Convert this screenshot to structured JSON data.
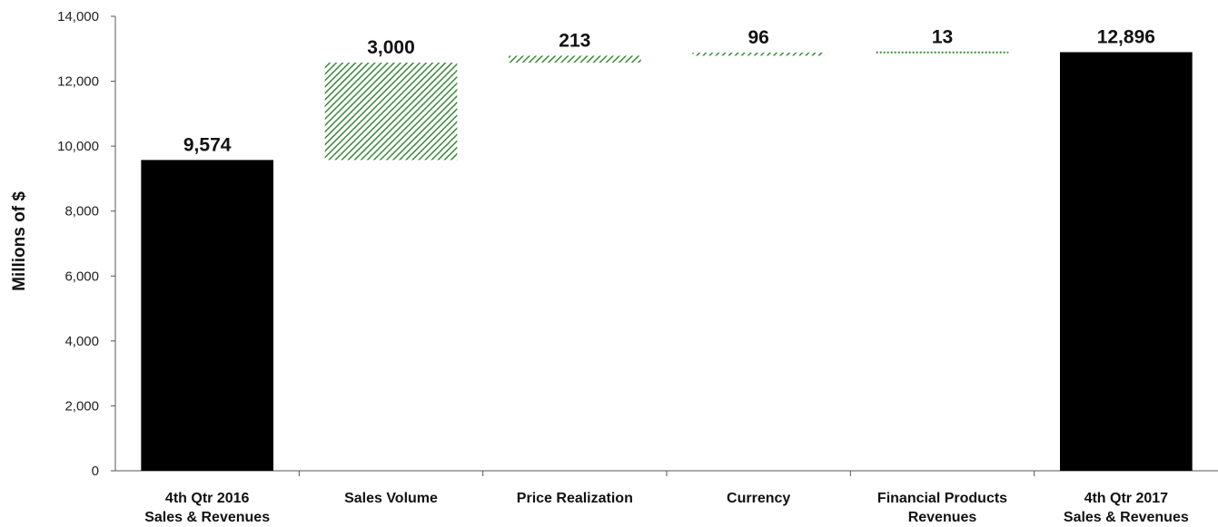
{
  "chart_data": {
    "type": "bar",
    "subtype": "waterfall",
    "title": "",
    "ylabel": "Millions of $",
    "xlabel": "",
    "ylim": [
      0,
      14000
    ],
    "yticks": [
      "0",
      "2,000",
      "4,000",
      "6,000",
      "8,000",
      "10,000",
      "12,000",
      "14,000"
    ],
    "grid": false,
    "legend": "none",
    "categories": [
      [
        "4th Qtr 2016",
        "Sales & Revenues"
      ],
      [
        "Sales Volume"
      ],
      [
        "Price Realization"
      ],
      [
        "Currency"
      ],
      [
        "Financial Products",
        "Revenues"
      ],
      [
        "4th Qtr 2017",
        "Sales & Revenues"
      ]
    ],
    "bars": [
      {
        "kind": "total",
        "value": 9574,
        "base": 0,
        "label": "9,574"
      },
      {
        "kind": "increase",
        "value": 3000,
        "base": 9574,
        "label": "3,000"
      },
      {
        "kind": "increase",
        "value": 213,
        "base": 12574,
        "label": "213"
      },
      {
        "kind": "increase",
        "value": 96,
        "base": 12787,
        "label": "96"
      },
      {
        "kind": "increase",
        "value": 13,
        "base": 12883,
        "label": "13"
      },
      {
        "kind": "total",
        "value": 12896,
        "base": 0,
        "label": "12,896"
      }
    ],
    "colors": {
      "total": "#000000",
      "increase": "#3a8a3a",
      "increase_bg": "#ffffff"
    }
  }
}
